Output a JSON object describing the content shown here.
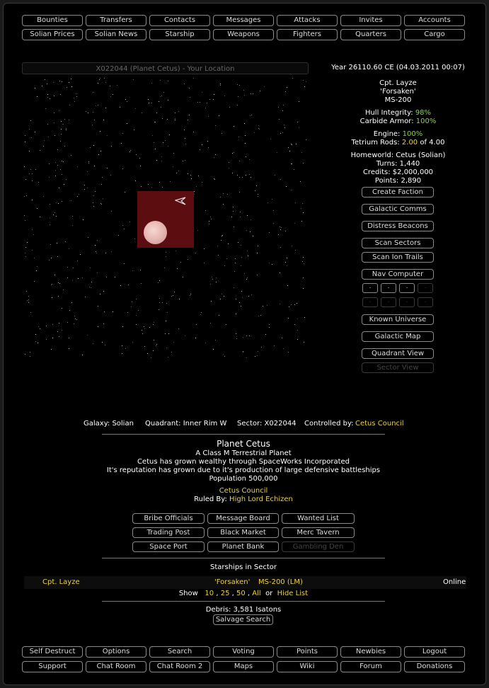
{
  "nav_top": {
    "row1": [
      "Bounties",
      "Transfers",
      "Contacts",
      "Messages",
      "Attacks",
      "Invites",
      "Accounts"
    ],
    "row2": [
      "Solian Prices",
      "Solian News",
      "Starship",
      "Weapons",
      "Fighters",
      "Quarters",
      "Cargo"
    ]
  },
  "location_bar": "X022044 (Planet Cetus) - Your Location",
  "status": {
    "date": "Year 26110.60 CE (04.03.2011 00:07)",
    "captain": "Cpt. Layze",
    "ship_name": "'Forsaken'",
    "ship_class": "MS-200",
    "hull_label": "Hull Integrity:",
    "hull_value": "98%",
    "armor_label": "Carbide Armor:",
    "armor_value": "100%",
    "engine_label": "Engine:",
    "engine_value": "100%",
    "rods_label": "Tetrium Rods:",
    "rods_value": "2.00",
    "rods_suffix": "of 4.00",
    "homeworld": "Homeworld: Cetus (Solian)",
    "turns": "Turns: 1,440",
    "credits": "Credits: $2,000,000",
    "points": "Points: 2,890"
  },
  "side_buttons": {
    "create_faction": "Create Faction",
    "galactic_comms": "Galactic Comms",
    "distress_beacons": "Distress Beacons",
    "scan_sectors": "Scan Sectors",
    "scan_ion_trails": "Scan Ion Trails",
    "nav_computer": "Nav Computer",
    "known_universe": "Known Universe",
    "galactic_map": "Galactic Map",
    "quadrant_view": "Quadrant View",
    "sector_view": "Sector View",
    "nav_dot": "."
  },
  "sector_info": {
    "galaxy": "Galaxy: Solian",
    "quadrant": "Quadrant: Inner Rim W",
    "sector": "Sector: X022044",
    "controlled_label": "Controlled by:",
    "controlled_value": "Cetus Council"
  },
  "planet": {
    "name": "Planet Cetus",
    "class": "A Class M Terrestrial Planet",
    "desc1": "Cetus has grown wealthy through SpaceWorks Incorporated",
    "desc2": "It's reputation has grown due to it's production of large defensive battleships",
    "population": "Population 500,000",
    "council": "Cetus Council",
    "ruled_label": "Ruled By:",
    "ruler": "High Lord Echizen"
  },
  "planet_buttons": {
    "bribe": "Bribe Officials",
    "message_board": "Message Board",
    "wanted": "Wanted List",
    "trading_post": "Trading Post",
    "black_market": "Black Market",
    "merc_tavern": "Merc Tavern",
    "space_port": "Space Port",
    "planet_bank": "Planet Bank",
    "gambling_den": "Gambling Den"
  },
  "starships": {
    "heading": "Starships in Sector",
    "captain": "Cpt. Layze",
    "ship": "'Forsaken'",
    "class": "MS-200 (LM)",
    "status": "Online",
    "show_label": "Show",
    "opt10": "10",
    "opt25": "25",
    "opt50": "50",
    "opt_all": "All",
    "or_label": "or",
    "hide_list": "Hide List",
    "comma": ","
  },
  "debris": {
    "text": "Debris: 3,581 Isatons",
    "salvage": "Salvage Search"
  },
  "nav_bottom": {
    "row1": [
      "Self Destruct",
      "Options",
      "Search",
      "Voting",
      "Points",
      "Newbies",
      "Logout"
    ],
    "row2": [
      "Support",
      "Chat Room",
      "Chat Room 2",
      "Maps",
      "Wiki",
      "Forum",
      "Donations"
    ]
  },
  "colors": {
    "positive": "#8ecf4a",
    "warning": "#e8d04a",
    "sector_cell": "#5c0d10"
  },
  "icons": [
    "ship-icon",
    "planet-icon"
  ]
}
